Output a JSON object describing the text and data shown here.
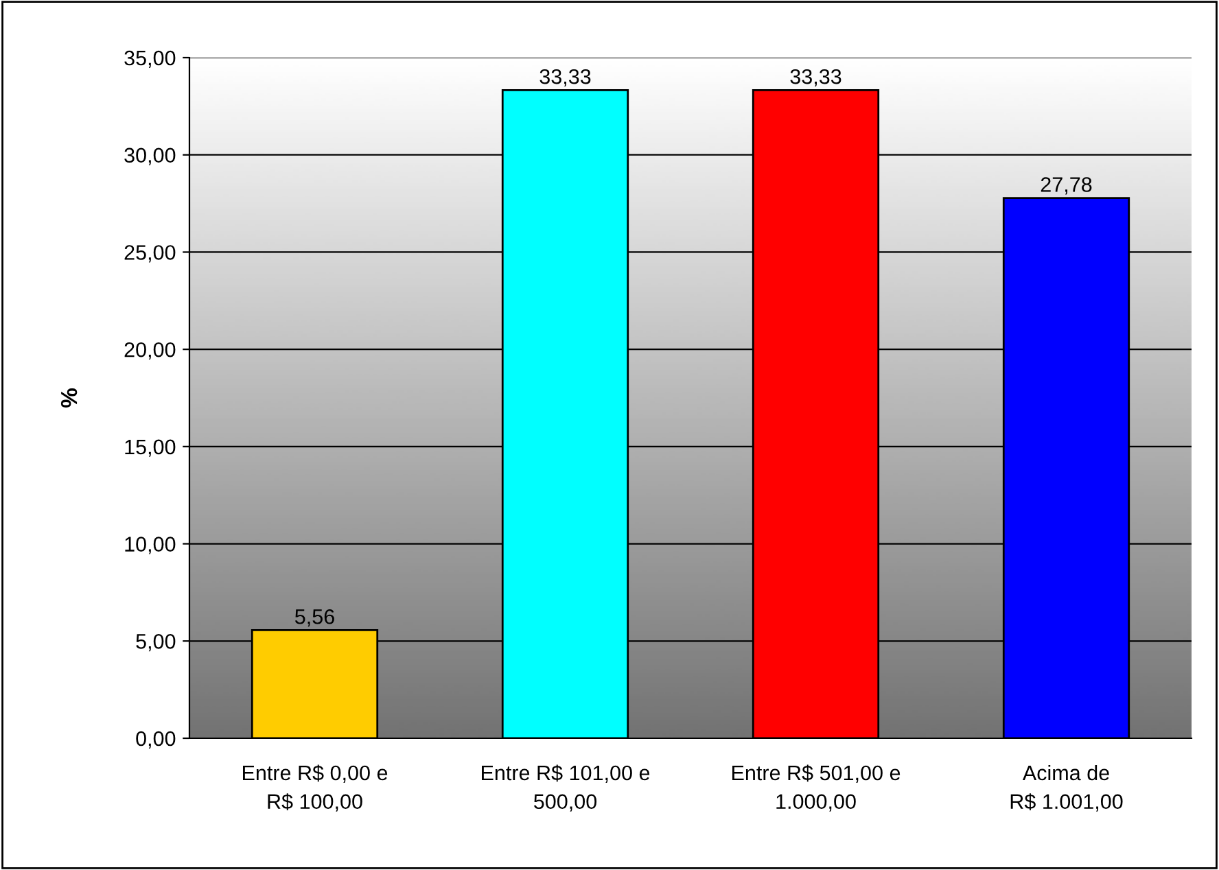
{
  "chart_data": {
    "type": "bar",
    "ylabel": "%",
    "categories": [
      "Entre R$ 0,00 e\nR$ 100,00",
      "Entre R$ 101,00 e\n500,00",
      "Entre R$ 501,00 e\n1.000,00",
      "Acima de\nR$ 1.001,00"
    ],
    "values": [
      5.56,
      33.33,
      33.33,
      27.78
    ],
    "colors": [
      "#ffcc00",
      "#00ffff",
      "#ff0000",
      "#0000ff"
    ],
    "value_labels": [
      "5,56",
      "33,33",
      "33,33",
      "27,78"
    ],
    "ylim": [
      0,
      35
    ],
    "yticks": [
      {
        "value": 0,
        "label": "0,00"
      },
      {
        "value": 5,
        "label": "5,00"
      },
      {
        "value": 10,
        "label": "10,00"
      },
      {
        "value": 15,
        "label": "15,00"
      },
      {
        "value": 20,
        "label": "20,00"
      },
      {
        "value": 25,
        "label": "25,00"
      },
      {
        "value": 30,
        "label": "30,00"
      },
      {
        "value": 35,
        "label": "35,00"
      }
    ],
    "grid": "y",
    "legend": false
  }
}
